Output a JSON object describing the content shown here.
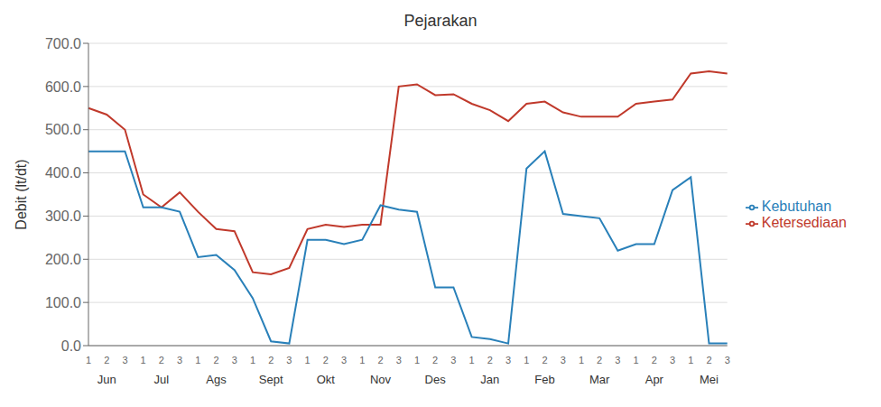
{
  "chart_data": {
    "type": "line",
    "title": "Pejarakan",
    "y_label": "Debit (lt/dt)",
    "categories": [
      "1",
      "2",
      "3",
      "1",
      "2",
      "3",
      "1",
      "2",
      "3",
      "1",
      "2",
      "3",
      "1",
      "2",
      "3",
      "1",
      "2",
      "3",
      "1",
      "2",
      "3",
      "1",
      "2",
      "3",
      "1",
      "2",
      "3",
      "1",
      "2",
      "3",
      "1",
      "2",
      "3",
      "1",
      "2",
      "3"
    ],
    "annotations": [
      "Jun",
      "Jul",
      "Ags",
      "Sept",
      "Okt",
      "Nov",
      "Des",
      "Jan",
      "Feb",
      "Mar",
      "Apr",
      "Mei"
    ],
    "series": [
      {
        "name": "Ketersediaan",
        "color": "#c0392b",
        "values": [
          550,
          535,
          500,
          350,
          320,
          355,
          310,
          270,
          265,
          170,
          165,
          180,
          270,
          280,
          275,
          280,
          280,
          600,
          605,
          580,
          582,
          560,
          545,
          520,
          560,
          565,
          540,
          530,
          530,
          530,
          560,
          565,
          570,
          630,
          635,
          630
        ]
      },
      {
        "name": "Kebutuhan",
        "color": "#2980b9",
        "values": [
          450,
          450,
          450,
          320,
          320,
          310,
          205,
          210,
          175,
          110,
          10,
          5,
          245,
          245,
          235,
          245,
          325,
          315,
          310,
          135,
          135,
          20,
          15,
          5,
          410,
          450,
          305,
          300,
          295,
          220,
          235,
          235,
          360,
          390,
          5,
          5
        ]
      }
    ],
    "ylim": [
      0,
      700
    ],
    "yticks": [
      {
        "value": 0,
        "label": "0.0"
      },
      {
        "value": 100,
        "label": "100.0"
      },
      {
        "value": 200,
        "label": "200.0"
      },
      {
        "value": 300,
        "label": "300.0"
      },
      {
        "value": 400,
        "label": "400.0"
      },
      {
        "value": 500,
        "label": "500.0"
      },
      {
        "value": 600,
        "label": "600.0"
      },
      {
        "value": 700,
        "label": "700.0"
      }
    ],
    "grid": true,
    "legend": "right"
  }
}
